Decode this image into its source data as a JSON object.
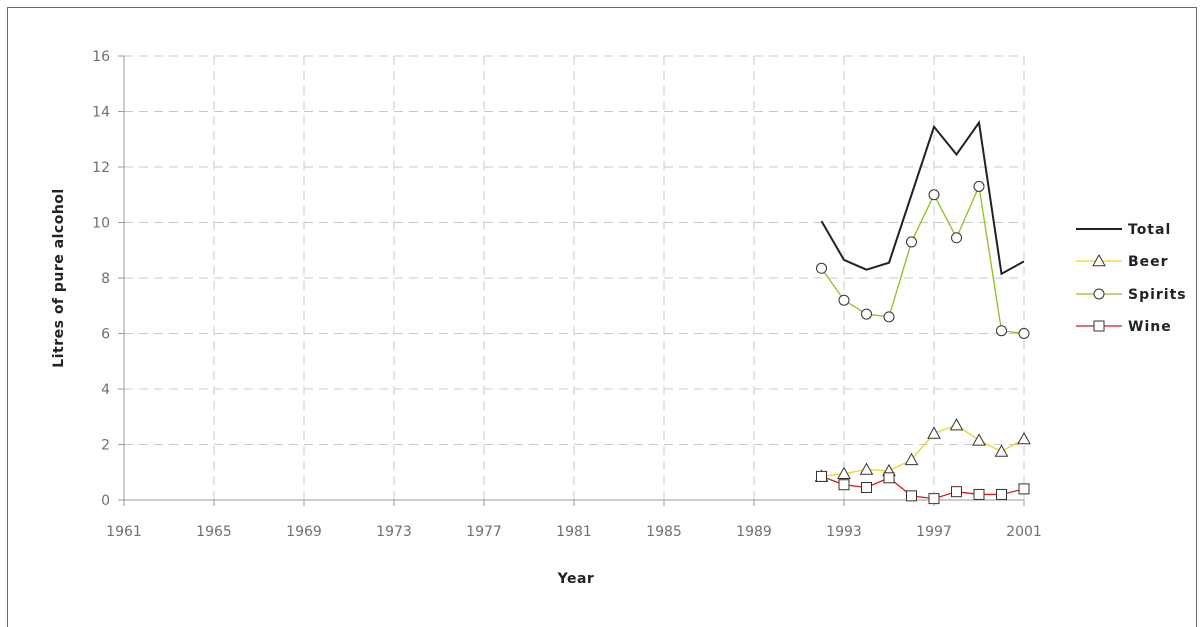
{
  "chart_data": {
    "type": "line",
    "title": "",
    "xlabel": "Year",
    "ylabel": "Litres of pure alcohol",
    "xlim": [
      1961,
      2001
    ],
    "ylim": [
      0,
      16
    ],
    "x_ticks": [
      1961,
      1965,
      1969,
      1973,
      1977,
      1981,
      1985,
      1989,
      1993,
      1997,
      2001
    ],
    "y_ticks": [
      0,
      2,
      4,
      6,
      8,
      10,
      12,
      14,
      16
    ],
    "grid": true,
    "legend_position": "right",
    "x": [
      1992,
      1993,
      1994,
      1995,
      1996,
      1997,
      1998,
      1999,
      2000,
      2001
    ],
    "series": [
      {
        "name": "Total",
        "color": "#222222",
        "marker": "none",
        "values": [
          10.05,
          8.65,
          8.3,
          8.55,
          11.0,
          13.45,
          12.45,
          13.6,
          8.15,
          8.6
        ]
      },
      {
        "name": "Beer",
        "color": "#f0d21c",
        "marker": "triangle",
        "values": [
          0.85,
          0.95,
          1.1,
          1.05,
          1.45,
          2.4,
          2.7,
          2.15,
          1.75,
          2.2
        ]
      },
      {
        "name": "Spirits",
        "color": "#8cc21e",
        "marker": "circle",
        "values": [
          8.35,
          7.2,
          6.7,
          6.6,
          9.3,
          11.0,
          9.45,
          11.3,
          6.1,
          6.0
        ]
      },
      {
        "name": "Wine",
        "color": "#d41c1c",
        "marker": "square",
        "values": [
          0.85,
          0.55,
          0.45,
          0.8,
          0.15,
          0.05,
          0.3,
          0.2,
          0.2,
          0.4
        ]
      }
    ]
  }
}
